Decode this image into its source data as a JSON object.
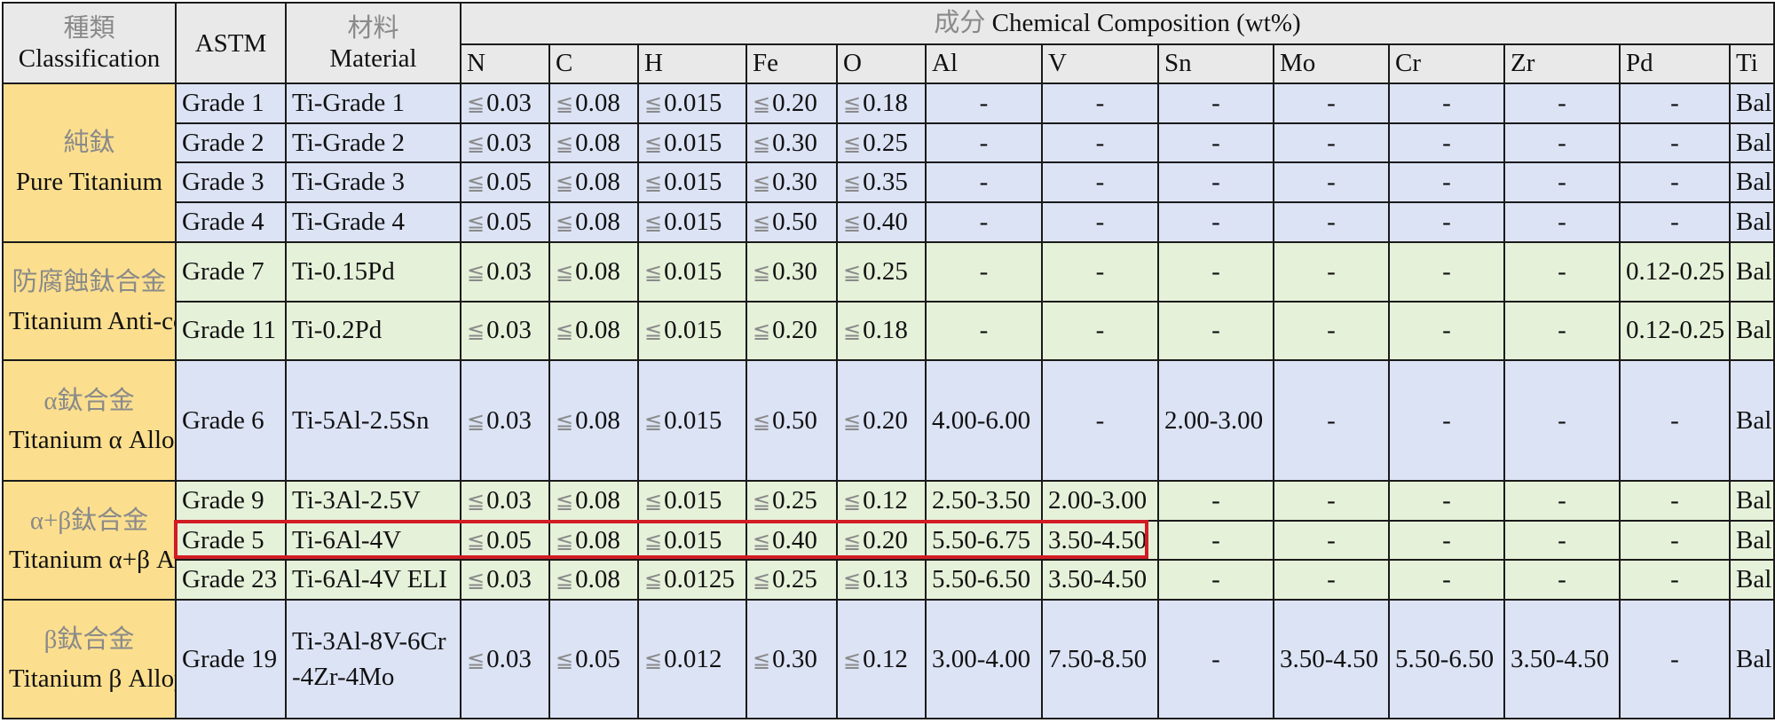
{
  "header": {
    "classification_zh": "種類",
    "classification_en": "Classification",
    "astm": "ASTM",
    "material_zh": "材料",
    "material_en": "Material",
    "composition_zh": "成分",
    "composition_en": "Chemical Composition (wt%)",
    "elements": [
      "N",
      "C",
      "H",
      "Fe",
      "O",
      "Al",
      "V",
      "Sn",
      "Mo",
      "Cr",
      "Zr",
      "Pd",
      "Ti"
    ]
  },
  "le_symbol": "≦",
  "groups": {
    "pure": {
      "zh": "純鈦",
      "en": "Pure Titanium"
    },
    "anti": {
      "zh": "防腐蝕鈦合金",
      "en": "Titanium Anti-corrosion Alloy"
    },
    "alpha": {
      "zh": "α鈦合金",
      "en": "Titanium α Alloy"
    },
    "ab": {
      "zh": "α+β鈦合金",
      "en": "Titanium α+β Alloy"
    },
    "beta": {
      "zh": "β鈦合金",
      "en": "Titanium β Alloy"
    }
  },
  "rows": [
    {
      "astm": "Grade 1",
      "material": "Ti-Grade 1",
      "N": "0.03",
      "C": "0.08",
      "H": "0.015",
      "Fe": "0.20",
      "O": "0.18",
      "Al": "-",
      "V": "-",
      "Sn": "-",
      "Mo": "-",
      "Cr": "-",
      "Zr": "-",
      "Pd": "-",
      "Ti": "Bal."
    },
    {
      "astm": "Grade 2",
      "material": "Ti-Grade 2",
      "N": "0.03",
      "C": "0.08",
      "H": "0.015",
      "Fe": "0.30",
      "O": "0.25",
      "Al": "-",
      "V": "-",
      "Sn": "-",
      "Mo": "-",
      "Cr": "-",
      "Zr": "-",
      "Pd": "-",
      "Ti": "Bal."
    },
    {
      "astm": "Grade 3",
      "material": "Ti-Grade 3",
      "N": "0.05",
      "C": "0.08",
      "H": "0.015",
      "Fe": "0.30",
      "O": "0.35",
      "Al": "-",
      "V": "-",
      "Sn": "-",
      "Mo": "-",
      "Cr": "-",
      "Zr": "-",
      "Pd": "-",
      "Ti": "Bal."
    },
    {
      "astm": "Grade 4",
      "material": "Ti-Grade 4",
      "N": "0.05",
      "C": "0.08",
      "H": "0.015",
      "Fe": "0.50",
      "O": "0.40",
      "Al": "-",
      "V": "-",
      "Sn": "-",
      "Mo": "-",
      "Cr": "-",
      "Zr": "-",
      "Pd": "-",
      "Ti": "Bal."
    },
    {
      "astm": "Grade 7",
      "material": "Ti-0.15Pd",
      "N": "0.03",
      "C": "0.08",
      "H": "0.015",
      "Fe": "0.30",
      "O": "0.25",
      "Al": "-",
      "V": "-",
      "Sn": "-",
      "Mo": "-",
      "Cr": "-",
      "Zr": "-",
      "Pd": "0.12-0.25",
      "Ti": "Bal."
    },
    {
      "astm": "Grade 11",
      "material": "Ti-0.2Pd",
      "N": "0.03",
      "C": "0.08",
      "H": "0.015",
      "Fe": "0.20",
      "O": "0.18",
      "Al": "-",
      "V": "-",
      "Sn": "-",
      "Mo": "-",
      "Cr": "-",
      "Zr": "-",
      "Pd": "0.12-0.25",
      "Ti": "Bal."
    },
    {
      "astm": "Grade 6",
      "material": "Ti-5Al-2.5Sn",
      "N": "0.03",
      "C": "0.08",
      "H": "0.015",
      "Fe": "0.50",
      "O": "0.20",
      "Al": "4.00-6.00",
      "V": "-",
      "Sn": "2.00-3.00",
      "Mo": "-",
      "Cr": "-",
      "Zr": "-",
      "Pd": "-",
      "Ti": "Bal."
    },
    {
      "astm": "Grade 9",
      "material": "Ti-3Al-2.5V",
      "N": "0.03",
      "C": "0.08",
      "H": "0.015",
      "Fe": "0.25",
      "O": "0.12",
      "Al": "2.50-3.50",
      "V": "2.00-3.00",
      "Sn": "-",
      "Mo": "-",
      "Cr": "-",
      "Zr": "-",
      "Pd": "-",
      "Ti": "Bal."
    },
    {
      "astm": "Grade 5",
      "material": "Ti-6Al-4V",
      "N": "0.05",
      "C": "0.08",
      "H": "0.015",
      "Fe": "0.40",
      "O": "0.20",
      "Al": "5.50-6.75",
      "V": "3.50-4.50",
      "Sn": "-",
      "Mo": "-",
      "Cr": "-",
      "Zr": "-",
      "Pd": "-",
      "Ti": "Bal."
    },
    {
      "astm": "Grade 23",
      "material": "Ti-6Al-4V ELI",
      "N": "0.03",
      "C": "0.08",
      "H": "0.0125",
      "Fe": "0.25",
      "O": "0.13",
      "Al": "5.50-6.50",
      "V": "3.50-4.50",
      "Sn": "-",
      "Mo": "-",
      "Cr": "-",
      "Zr": "-",
      "Pd": "-",
      "Ti": "Bal."
    },
    {
      "astm": "Grade 19",
      "material_line1": "Ti-3Al-8V-6Cr",
      "material_line2": "-4Zr-4Mo",
      "N": "0.03",
      "C": "0.05",
      "H": "0.012",
      "Fe": "0.30",
      "O": "0.12",
      "Al": "3.00-4.00",
      "V": "7.50-8.50",
      "Sn": "-",
      "Mo": "3.50-4.50",
      "Cr": "5.50-6.50",
      "Zr": "3.50-4.50",
      "Pd": "-",
      "Ti": "Bal."
    }
  ],
  "highlight_color": "#d11c24"
}
